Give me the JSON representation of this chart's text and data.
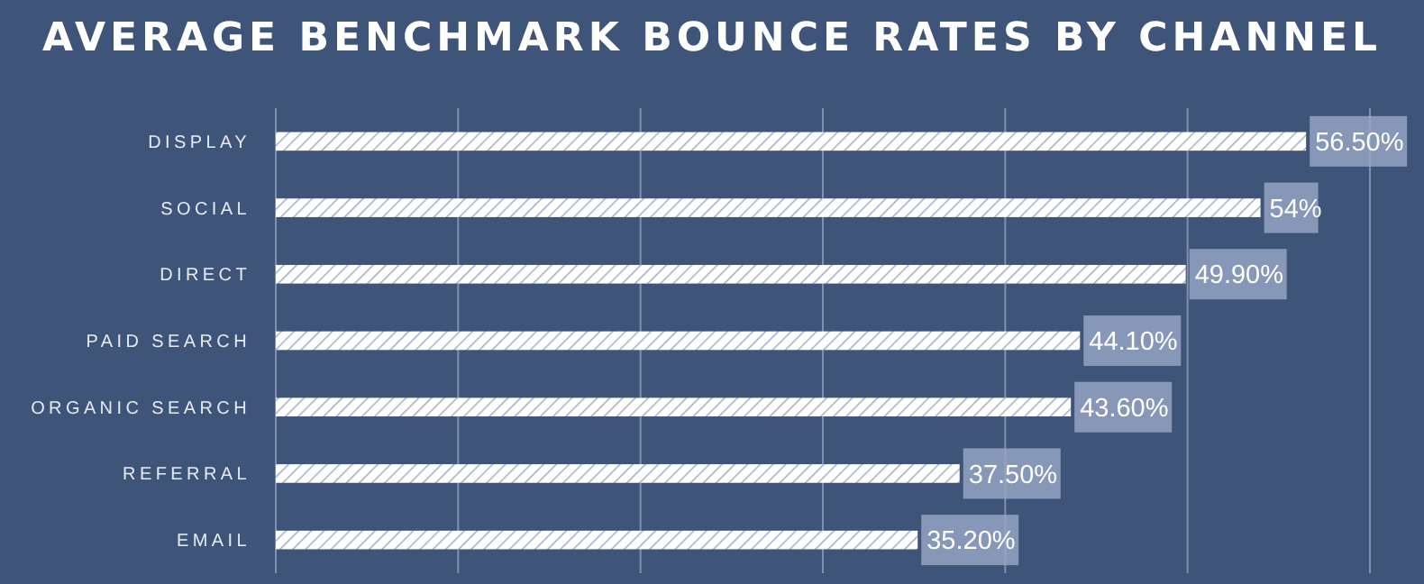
{
  "chart_data": {
    "type": "bar",
    "orientation": "horizontal",
    "title": "AVERAGE BENCHMARK BOUNCE RATES BY CHANNEL",
    "categories": [
      "DISPLAY",
      "SOCIAL",
      "DIRECT",
      "PAID SEARCH",
      "ORGANIC SEARCH",
      "REFERRAL",
      "EMAIL"
    ],
    "values": [
      56.5,
      54,
      49.9,
      44.1,
      43.6,
      37.5,
      35.2
    ],
    "value_labels": [
      "56.50%",
      "54%",
      "49.90%",
      "44.10%",
      "43.60%",
      "37.50%",
      "35.20%"
    ],
    "color": "#ffffff",
    "xlim": [
      0,
      60
    ],
    "xticks": [
      {
        "value": 0,
        "label": null
      },
      {
        "value": 10,
        "label": null
      },
      {
        "value": 20,
        "label": null
      },
      {
        "value": 30,
        "label": null
      },
      {
        "value": 40,
        "label": null
      },
      {
        "value": 50,
        "label": null
      },
      {
        "value": 60,
        "label": null
      }
    ],
    "grid": "x",
    "tick_labels": "y"
  }
}
